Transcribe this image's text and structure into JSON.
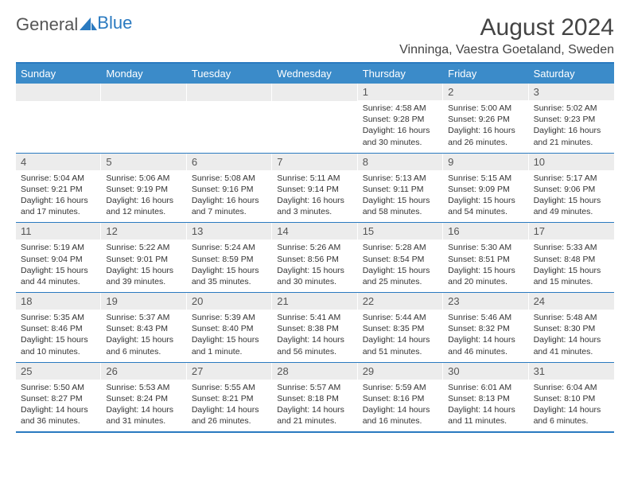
{
  "logo": {
    "text1": "General",
    "text2": "Blue"
  },
  "title": "August 2024",
  "location": "Vinninga, Vaestra Goetaland, Sweden",
  "day_names": [
    "Sunday",
    "Monday",
    "Tuesday",
    "Wednesday",
    "Thursday",
    "Friday",
    "Saturday"
  ],
  "colors": {
    "header_bg": "#3b8bc9",
    "border": "#2a7ac0",
    "daynum_bg": "#ececec",
    "text": "#333333"
  },
  "layout": {
    "first_day_col": 4,
    "num_days": 31
  },
  "days": {
    "1": {
      "sunrise": "4:58 AM",
      "sunset": "9:28 PM",
      "daylight": "16 hours and 30 minutes."
    },
    "2": {
      "sunrise": "5:00 AM",
      "sunset": "9:26 PM",
      "daylight": "16 hours and 26 minutes."
    },
    "3": {
      "sunrise": "5:02 AM",
      "sunset": "9:23 PM",
      "daylight": "16 hours and 21 minutes."
    },
    "4": {
      "sunrise": "5:04 AM",
      "sunset": "9:21 PM",
      "daylight": "16 hours and 17 minutes."
    },
    "5": {
      "sunrise": "5:06 AM",
      "sunset": "9:19 PM",
      "daylight": "16 hours and 12 minutes."
    },
    "6": {
      "sunrise": "5:08 AM",
      "sunset": "9:16 PM",
      "daylight": "16 hours and 7 minutes."
    },
    "7": {
      "sunrise": "5:11 AM",
      "sunset": "9:14 PM",
      "daylight": "16 hours and 3 minutes."
    },
    "8": {
      "sunrise": "5:13 AM",
      "sunset": "9:11 PM",
      "daylight": "15 hours and 58 minutes."
    },
    "9": {
      "sunrise": "5:15 AM",
      "sunset": "9:09 PM",
      "daylight": "15 hours and 54 minutes."
    },
    "10": {
      "sunrise": "5:17 AM",
      "sunset": "9:06 PM",
      "daylight": "15 hours and 49 minutes."
    },
    "11": {
      "sunrise": "5:19 AM",
      "sunset": "9:04 PM",
      "daylight": "15 hours and 44 minutes."
    },
    "12": {
      "sunrise": "5:22 AM",
      "sunset": "9:01 PM",
      "daylight": "15 hours and 39 minutes."
    },
    "13": {
      "sunrise": "5:24 AM",
      "sunset": "8:59 PM",
      "daylight": "15 hours and 35 minutes."
    },
    "14": {
      "sunrise": "5:26 AM",
      "sunset": "8:56 PM",
      "daylight": "15 hours and 30 minutes."
    },
    "15": {
      "sunrise": "5:28 AM",
      "sunset": "8:54 PM",
      "daylight": "15 hours and 25 minutes."
    },
    "16": {
      "sunrise": "5:30 AM",
      "sunset": "8:51 PM",
      "daylight": "15 hours and 20 minutes."
    },
    "17": {
      "sunrise": "5:33 AM",
      "sunset": "8:48 PM",
      "daylight": "15 hours and 15 minutes."
    },
    "18": {
      "sunrise": "5:35 AM",
      "sunset": "8:46 PM",
      "daylight": "15 hours and 10 minutes."
    },
    "19": {
      "sunrise": "5:37 AM",
      "sunset": "8:43 PM",
      "daylight": "15 hours and 6 minutes."
    },
    "20": {
      "sunrise": "5:39 AM",
      "sunset": "8:40 PM",
      "daylight": "15 hours and 1 minute."
    },
    "21": {
      "sunrise": "5:41 AM",
      "sunset": "8:38 PM",
      "daylight": "14 hours and 56 minutes."
    },
    "22": {
      "sunrise": "5:44 AM",
      "sunset": "8:35 PM",
      "daylight": "14 hours and 51 minutes."
    },
    "23": {
      "sunrise": "5:46 AM",
      "sunset": "8:32 PM",
      "daylight": "14 hours and 46 minutes."
    },
    "24": {
      "sunrise": "5:48 AM",
      "sunset": "8:30 PM",
      "daylight": "14 hours and 41 minutes."
    },
    "25": {
      "sunrise": "5:50 AM",
      "sunset": "8:27 PM",
      "daylight": "14 hours and 36 minutes."
    },
    "26": {
      "sunrise": "5:53 AM",
      "sunset": "8:24 PM",
      "daylight": "14 hours and 31 minutes."
    },
    "27": {
      "sunrise": "5:55 AM",
      "sunset": "8:21 PM",
      "daylight": "14 hours and 26 minutes."
    },
    "28": {
      "sunrise": "5:57 AM",
      "sunset": "8:18 PM",
      "daylight": "14 hours and 21 minutes."
    },
    "29": {
      "sunrise": "5:59 AM",
      "sunset": "8:16 PM",
      "daylight": "14 hours and 16 minutes."
    },
    "30": {
      "sunrise": "6:01 AM",
      "sunset": "8:13 PM",
      "daylight": "14 hours and 11 minutes."
    },
    "31": {
      "sunrise": "6:04 AM",
      "sunset": "8:10 PM",
      "daylight": "14 hours and 6 minutes."
    }
  },
  "labels": {
    "sunrise": "Sunrise: ",
    "sunset": "Sunset: ",
    "daylight": "Daylight: "
  }
}
